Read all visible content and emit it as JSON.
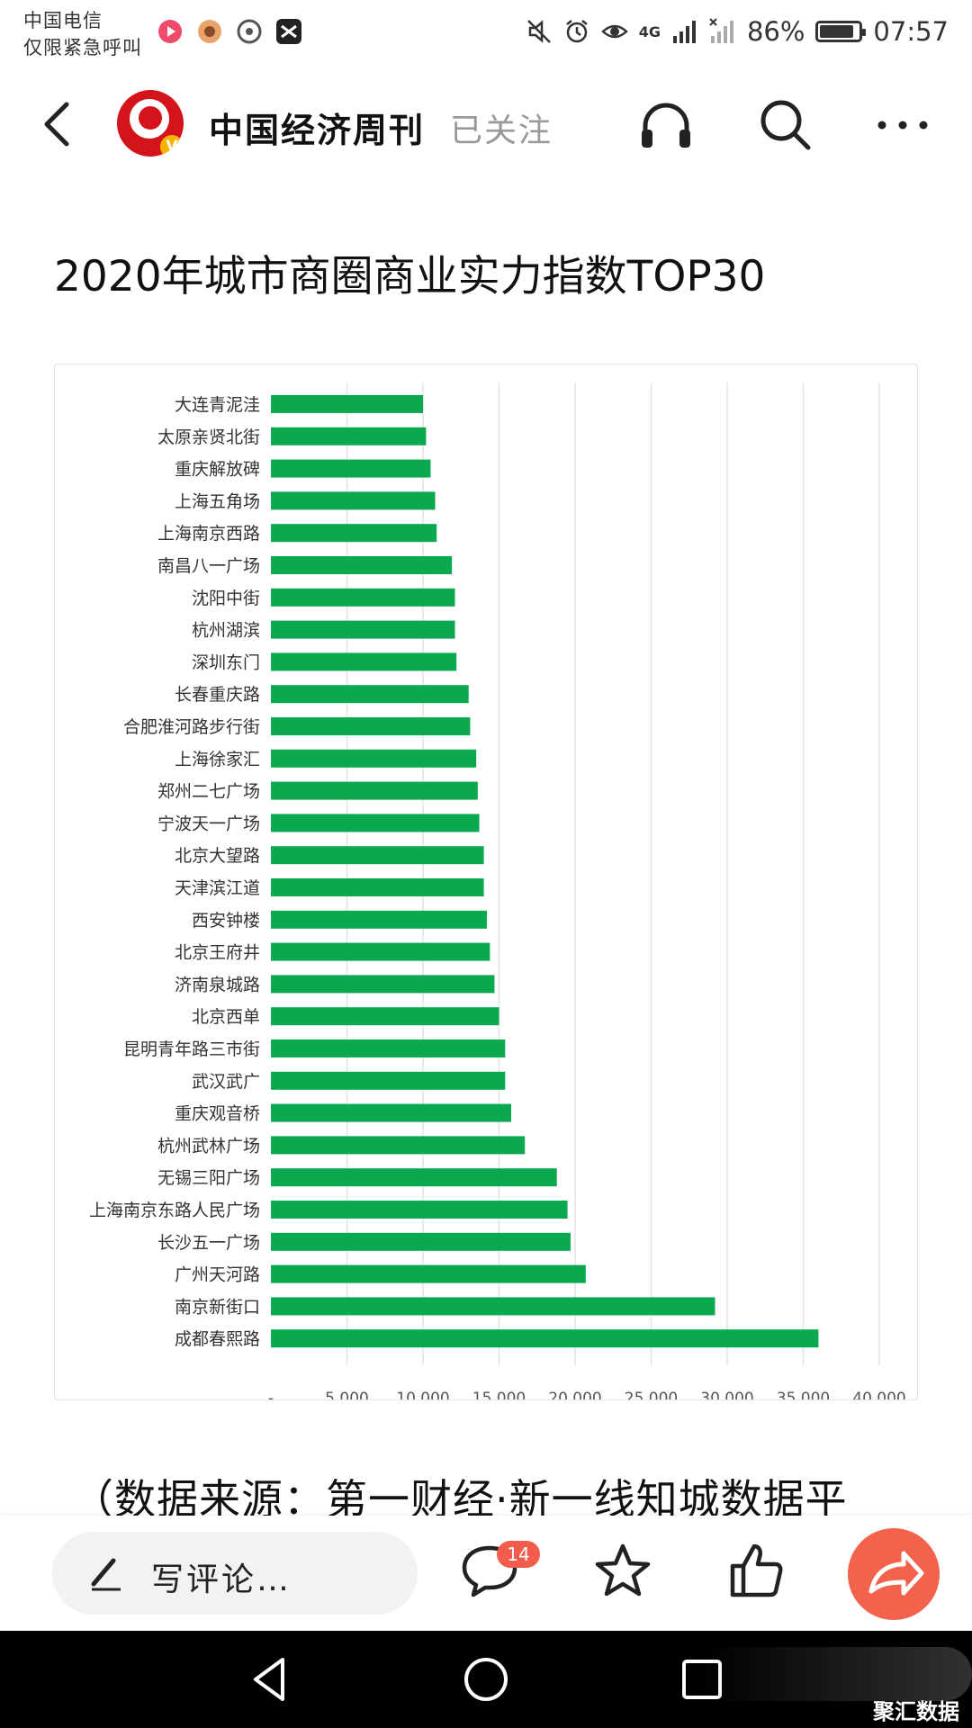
{
  "status_bar": {
    "carrier_line1": "中国电信",
    "carrier_line2": "仅限紧急呼叫",
    "battery": "86%",
    "time": "07:57",
    "network": "4G"
  },
  "header": {
    "account_name": "中国经济周刊",
    "follow_status": "已关注",
    "avatar_badge": "V",
    "icons": [
      "back-icon",
      "headphones-icon",
      "search-icon",
      "more-icon"
    ]
  },
  "article": {
    "title": "2020年城市商圈商业实力指数TOP30",
    "source_text": "（数据来源：第一财经·新一线知城数据平"
  },
  "chart_data": {
    "type": "bar",
    "orientation": "horizontal",
    "categories": [
      "大连青泥洼",
      "太原亲贤北街",
      "重庆解放碑",
      "上海五角场",
      "上海南京西路",
      "南昌八一广场",
      "沈阳中街",
      "杭州湖滨",
      "深圳东门",
      "长春重庆路",
      "合肥淮河路步行街",
      "上海徐家汇",
      "郑州二七广场",
      "宁波天一广场",
      "北京大望路",
      "天津滨江道",
      "西安钟楼",
      "北京王府井",
      "济南泉城路",
      "北京西单",
      "昆明青年路三市街",
      "武汉武广",
      "重庆观音桥",
      "杭州武林广场",
      "无锡三阳广场",
      "上海南京东路人民广场",
      "长沙五一广场",
      "广州天河路",
      "南京新街口",
      "成都春熙路"
    ],
    "values": [
      10000,
      10200,
      10500,
      10800,
      10900,
      11900,
      12100,
      12100,
      12200,
      13000,
      13100,
      13500,
      13600,
      13700,
      14000,
      14000,
      14200,
      14400,
      14700,
      15000,
      15400,
      15400,
      15800,
      16700,
      18800,
      19500,
      19700,
      20700,
      29200,
      36000
    ],
    "xlim": [
      0,
      40000
    ],
    "xticks": [
      "-",
      "5,000",
      "10,000",
      "15,000",
      "20,000",
      "25,000",
      "30,000",
      "35,000",
      "40,000"
    ],
    "grid": "vertical",
    "bar_color": "#0aa84f"
  },
  "action_bar": {
    "comment_placeholder": "写评论…",
    "comment_count": "14",
    "icons": [
      "pen-icon",
      "comment-icon",
      "star-icon",
      "thumbs-up-icon",
      "share-icon"
    ],
    "share_color": "#f2624d"
  },
  "nav_bar": {
    "watermark": "聚汇数据",
    "icons": [
      "nav-back-icon",
      "nav-home-icon",
      "nav-recent-icon"
    ]
  }
}
